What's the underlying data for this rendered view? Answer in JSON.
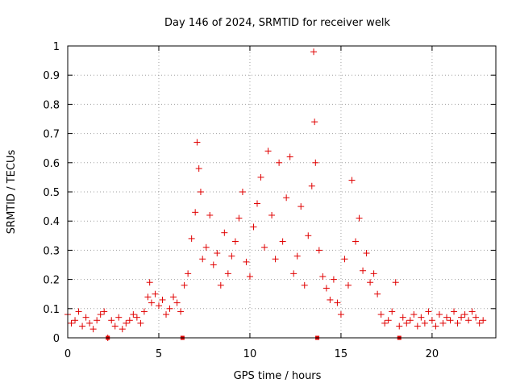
{
  "chart_data": {
    "type": "scatter",
    "title": "Day 146 of 2024, SRMTID for receiver welk",
    "xlabel": "GPS time / hours",
    "ylabel": "SRMTID / TECUs",
    "xlim": [
      0,
      23.5
    ],
    "ylim": [
      0,
      1
    ],
    "xticks": [
      0,
      5,
      10,
      15,
      20
    ],
    "xtick_labels": [
      "0",
      "5",
      "10",
      "15",
      "20"
    ],
    "yticks": [
      0,
      0.1,
      0.2,
      0.3,
      0.4,
      0.5,
      0.6,
      0.7,
      0.8,
      0.9,
      1
    ],
    "ytick_labels": [
      "0",
      "0.1",
      "0.2",
      "0.3",
      "0.4",
      "0.5",
      "0.6",
      "0.7",
      "0.8",
      "0.9",
      "1"
    ],
    "grid": true,
    "series_color": "#e00000",
    "series": [
      {
        "name": "SRMTID",
        "x": [
          0.0,
          0.2,
          0.4,
          0.6,
          0.8,
          1.0,
          1.2,
          1.4,
          1.6,
          1.8,
          2.0,
          2.2,
          2.4,
          2.6,
          2.8,
          3.0,
          3.2,
          3.4,
          3.6,
          3.8,
          4.0,
          4.2,
          4.4,
          4.5,
          4.6,
          4.8,
          5.0,
          5.2,
          5.4,
          5.6,
          5.8,
          6.0,
          6.2,
          6.4,
          6.6,
          6.8,
          7.0,
          7.1,
          7.2,
          7.3,
          7.4,
          7.6,
          7.8,
          8.0,
          8.2,
          8.4,
          8.6,
          8.8,
          9.0,
          9.2,
          9.4,
          9.6,
          9.8,
          10.0,
          10.2,
          10.4,
          10.6,
          10.8,
          11.0,
          11.2,
          11.4,
          11.6,
          11.8,
          12.0,
          12.2,
          12.4,
          12.6,
          12.8,
          13.0,
          13.2,
          13.4,
          13.5,
          13.55,
          13.6,
          13.8,
          14.0,
          14.2,
          14.4,
          14.6,
          14.8,
          15.0,
          15.2,
          15.4,
          15.6,
          15.8,
          16.0,
          16.2,
          16.4,
          16.6,
          16.8,
          17.0,
          17.2,
          17.4,
          17.6,
          17.8,
          18.0,
          18.2,
          18.4,
          18.6,
          18.8,
          19.0,
          19.2,
          19.4,
          19.6,
          19.8,
          20.0,
          20.2,
          20.4,
          20.6,
          20.8,
          21.0,
          21.2,
          21.4,
          21.6,
          21.8,
          22.0,
          22.2,
          22.4,
          22.6,
          22.8
        ],
        "y": [
          0.08,
          0.05,
          0.06,
          0.09,
          0.04,
          0.07,
          0.05,
          0.03,
          0.06,
          0.08,
          0.09,
          0.0,
          0.06,
          0.04,
          0.07,
          0.03,
          0.05,
          0.06,
          0.08,
          0.07,
          0.05,
          0.09,
          0.14,
          0.19,
          0.12,
          0.15,
          0.11,
          0.13,
          0.08,
          0.1,
          0.14,
          0.12,
          0.09,
          0.18,
          0.22,
          0.34,
          0.43,
          0.67,
          0.58,
          0.5,
          0.27,
          0.31,
          0.42,
          0.25,
          0.29,
          0.18,
          0.36,
          0.22,
          0.28,
          0.33,
          0.41,
          0.5,
          0.26,
          0.21,
          0.38,
          0.46,
          0.55,
          0.31,
          0.64,
          0.42,
          0.27,
          0.6,
          0.33,
          0.48,
          0.62,
          0.22,
          0.28,
          0.45,
          0.18,
          0.35,
          0.52,
          0.98,
          0.74,
          0.6,
          0.3,
          0.21,
          0.17,
          0.13,
          0.2,
          0.12,
          0.08,
          0.27,
          0.18,
          0.54,
          0.33,
          0.41,
          0.23,
          0.29,
          0.19,
          0.22,
          0.15,
          0.08,
          0.05,
          0.06,
          0.09,
          0.19,
          0.04,
          0.07,
          0.05,
          0.06,
          0.08,
          0.04,
          0.07,
          0.05,
          0.09,
          0.06,
          0.04,
          0.08,
          0.05,
          0.07,
          0.06,
          0.09,
          0.05,
          0.07,
          0.08,
          0.06,
          0.09,
          0.07,
          0.05,
          0.06
        ]
      }
    ],
    "xaxis_markers": [
      2.2,
      6.3,
      13.7,
      18.2
    ]
  }
}
